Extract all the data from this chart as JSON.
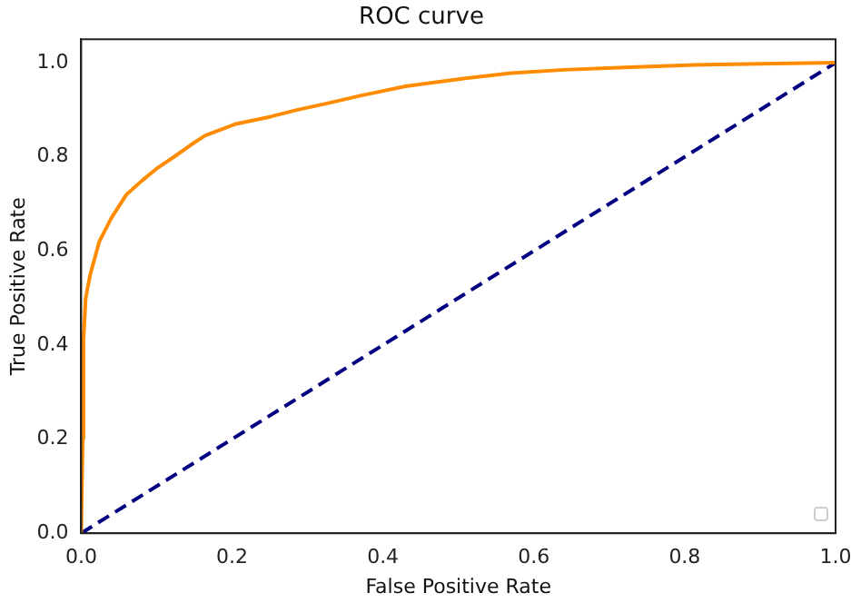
{
  "chart_data": {
    "type": "line",
    "title": "ROC curve",
    "xlabel": "False Positive Rate",
    "ylabel": "True Positive Rate",
    "xlim": [
      0,
      1
    ],
    "ylim": [
      0,
      1.05
    ],
    "xticks": [
      {
        "value": 0,
        "label": "0.0"
      },
      0.2,
      0.4,
      0.6,
      0.8,
      {
        "value": 1,
        "label": "1.0"
      }
    ],
    "yticks": [
      {
        "value": 0,
        "label": "0.0"
      },
      0.2,
      0.4,
      0.6,
      0.8,
      {
        "value": 1,
        "label": "1.0"
      }
    ],
    "grid": false,
    "marker": "none",
    "series": [
      {
        "color": "#ff8c00",
        "line_style": "solid",
        "x": [
          0,
          0.002,
          0.003,
          0.006,
          0.012,
          0.024,
          0.04,
          0.06,
          0.081,
          0.1,
          0.123,
          0.145,
          0.164,
          0.205,
          0.25,
          0.287,
          0.33,
          0.37,
          0.43,
          0.5,
          0.57,
          0.64,
          0.72,
          0.805,
          0.9,
          1
        ],
        "values": [
          0,
          0.2,
          0.41,
          0.5,
          0.55,
          0.62,
          0.67,
          0.72,
          0.75,
          0.775,
          0.8,
          0.825,
          0.845,
          0.87,
          0.885,
          0.9,
          0.915,
          0.93,
          0.95,
          0.965,
          0.978,
          0.985,
          0.99,
          0.995,
          0.998,
          1
        ]
      },
      {
        "color": "#000080",
        "line_style": "dashed",
        "x": [
          0,
          1
        ],
        "values": [
          0,
          1
        ]
      }
    ]
  }
}
